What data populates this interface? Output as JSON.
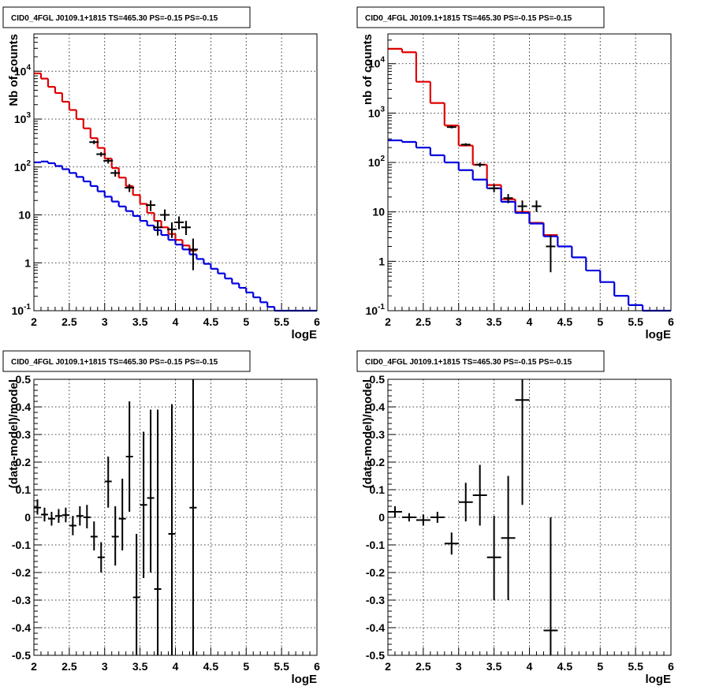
{
  "chart_data": [
    {
      "type": "step",
      "title": "CID0_4FGL J0109.1+1815 TS=465.30 PS=-0.15 PS=-0.15",
      "xlabel": "logE",
      "ylabel": "Nb of counts",
      "xlim": [
        2,
        6
      ],
      "ylim": [
        0.1,
        60000
      ],
      "yscale": "log",
      "grid": true,
      "x_ticks": [
        "2",
        "2.5",
        "3",
        "3.5",
        "4",
        "4.5",
        "5",
        "5.5",
        "6"
      ],
      "y_ticks": [
        "10^-1",
        "1",
        "10",
        "10^2",
        "10^3",
        "10^4"
      ],
      "series": [
        {
          "color": "#e00000",
          "kind": "step",
          "bin_width": 0.1,
          "x": [
            2.0,
            2.1,
            2.2,
            2.3,
            2.4,
            2.5,
            2.6,
            2.7,
            2.8,
            2.9,
            3.0,
            3.1,
            3.2,
            3.3,
            3.4,
            3.5,
            3.6,
            3.7,
            3.8,
            3.9,
            4.0,
            4.1,
            4.2
          ],
          "values": [
            9000,
            7000,
            4700,
            3500,
            2300,
            1550,
            1000,
            640,
            400,
            250,
            150,
            95,
            60,
            40,
            26,
            17,
            11,
            7.5,
            5.5,
            4,
            3,
            2.3,
            1.8
          ]
        },
        {
          "color": "#0000e0",
          "kind": "step",
          "bin_width": 0.1,
          "x": [
            2.0,
            2.1,
            2.2,
            2.3,
            2.4,
            2.5,
            2.6,
            2.7,
            2.8,
            2.9,
            3.0,
            3.1,
            3.2,
            3.3,
            3.4,
            3.5,
            3.6,
            3.7,
            3.8,
            3.9,
            4.0,
            4.1,
            4.2,
            4.3,
            4.4,
            4.5,
            4.6,
            4.7,
            4.8,
            4.9,
            5.0,
            5.1,
            5.2,
            5.3,
            5.4,
            5.5,
            5.6,
            5.7,
            5.8,
            5.9
          ],
          "values": [
            125,
            130,
            120,
            105,
            90,
            75,
            62,
            50,
            40,
            31,
            24,
            19,
            15,
            12,
            9.5,
            7.5,
            6,
            4.8,
            3.8,
            3,
            2.4,
            1.9,
            1.5,
            1.2,
            0.95,
            0.75,
            0.6,
            0.47,
            0.37,
            0.3,
            0.24,
            0.19,
            0.15,
            0.12,
            0.1,
            0.1,
            0.1,
            0.1,
            0.1,
            0.1
          ]
        },
        {
          "color": "#000000",
          "kind": "points",
          "x": [
            2.85,
            2.95,
            3.05,
            3.15,
            3.35,
            3.65,
            3.75,
            3.85,
            3.95,
            4.05,
            4.15,
            4.25
          ],
          "values": [
            330,
            185,
            135,
            75,
            37,
            16,
            5.5,
            10,
            5,
            7,
            5.5,
            1.9
          ],
          "err_low": [
            300,
            165,
            118,
            63,
            30,
            12,
            3.7,
            7.5,
            3.3,
            5,
            3.8,
            0.7
          ],
          "err_high": [
            360,
            205,
            152,
            87,
            44,
            20,
            7.5,
            13,
            7,
            9.3,
            7.5,
            3.2
          ]
        }
      ]
    },
    {
      "type": "step",
      "title": "CID0_4FGL J0109.1+1815 TS=465.30 PS=-0.15 PS=-0.15",
      "xlabel": "logE",
      "ylabel": "nb of counts",
      "xlim": [
        2,
        6
      ],
      "ylim": [
        0.1,
        40000
      ],
      "yscale": "log",
      "grid": true,
      "x_ticks": [
        "2",
        "2.5",
        "3",
        "3.5",
        "4",
        "4.5",
        "5",
        "5.5",
        "6"
      ],
      "y_ticks": [
        "10^-1",
        "1",
        "10",
        "10^2",
        "10^3",
        "10^4"
      ],
      "series": [
        {
          "color": "#e00000",
          "kind": "step",
          "bin_width": 0.2,
          "x": [
            2.0,
            2.2,
            2.4,
            2.6,
            2.8,
            3.0,
            3.2,
            3.4,
            3.6,
            3.8,
            4.0,
            4.2
          ],
          "values": [
            20000,
            17000,
            4300,
            1600,
            560,
            220,
            90,
            35,
            18,
            10,
            6,
            3.4
          ]
        },
        {
          "color": "#0000e0",
          "kind": "step",
          "bin_width": 0.2,
          "x": [
            2.0,
            2.2,
            2.4,
            2.6,
            2.8,
            3.0,
            3.2,
            3.4,
            3.6,
            3.8,
            4.0,
            4.2,
            4.4,
            4.6,
            4.8,
            5.0,
            5.2,
            5.4,
            5.6,
            5.8
          ],
          "values": [
            280,
            260,
            200,
            140,
            100,
            70,
            45,
            30,
            16,
            9.5,
            5.8,
            3.2,
            2,
            1.2,
            0.65,
            0.38,
            0.2,
            0.13,
            0.1,
            0.1
          ]
        },
        {
          "color": "#000000",
          "kind": "points",
          "x": [
            2.9,
            3.1,
            3.3,
            3.5,
            3.7,
            3.9,
            4.1,
            4.3
          ],
          "values": [
            520,
            230,
            90,
            30,
            19,
            13,
            13,
            2
          ],
          "err_low": [
            490,
            215,
            81,
            25,
            15,
            10,
            10,
            0.6
          ],
          "err_high": [
            550,
            245,
            99,
            36,
            23,
            17,
            17,
            3.4
          ]
        }
      ]
    },
    {
      "type": "scatter",
      "title": "CID0_4FGL J0109.1+1815 TS=465.30 PS=-0.15 PS=-0.15",
      "xlabel": "logE",
      "ylabel": "(data-model)/model",
      "xlim": [
        2,
        6
      ],
      "ylim": [
        -0.5,
        0.5
      ],
      "grid": true,
      "x_ticks": [
        "2",
        "2.5",
        "3",
        "3.5",
        "4",
        "4.5",
        "5",
        "5.5",
        "6"
      ],
      "y_ticks": [
        "-0.5",
        "-0.4",
        "-0.3",
        "-0.2",
        "-0.1",
        "0",
        "0.1",
        "0.2",
        "0.3",
        "0.4",
        "0.5"
      ],
      "x_half_width": 0.05,
      "series": [
        {
          "color": "#000000",
          "x": [
            2.05,
            2.15,
            2.25,
            2.35,
            2.45,
            2.55,
            2.65,
            2.75,
            2.85,
            2.95,
            3.05,
            3.15,
            3.25,
            3.35,
            3.45,
            3.55,
            3.65,
            3.75,
            3.95,
            4.25
          ],
          "values": [
            0.035,
            0.01,
            -0.005,
            0.005,
            0.008,
            -0.03,
            0.005,
            0.0,
            -0.07,
            -0.145,
            0.13,
            -0.07,
            -0.005,
            0.22,
            -0.29,
            0.045,
            0.07,
            -0.26,
            -0.06,
            0.035
          ],
          "err_low": [
            0.01,
            -0.015,
            -0.03,
            -0.02,
            -0.018,
            -0.065,
            -0.03,
            -0.04,
            -0.12,
            -0.2,
            0.035,
            -0.175,
            -0.12,
            0.02,
            -0.5,
            -0.22,
            -0.2,
            -0.5,
            -0.5,
            -0.5
          ],
          "err_high": [
            0.065,
            0.035,
            0.02,
            0.03,
            0.035,
            0.005,
            0.04,
            0.045,
            -0.015,
            -0.09,
            0.22,
            0.04,
            0.14,
            0.42,
            -0.06,
            0.31,
            0.39,
            0.39,
            0.41,
            0.5
          ]
        }
      ]
    },
    {
      "type": "scatter",
      "title": "CID0_4FGL J0109.1+1815 TS=465.30 PS=-0.15 PS=-0.15",
      "xlabel": "logE",
      "ylabel": "(data-model)/model",
      "xlim": [
        2,
        6
      ],
      "ylim": [
        -0.5,
        0.5
      ],
      "grid": true,
      "x_ticks": [
        "2",
        "2.5",
        "3",
        "3.5",
        "4",
        "4.5",
        "5",
        "5.5",
        "6"
      ],
      "y_ticks": [
        "-0.5",
        "-0.4",
        "-0.3",
        "-0.2",
        "-0.1",
        "0",
        "0.1",
        "0.2",
        "0.3",
        "0.4",
        "0.5"
      ],
      "x_half_width": 0.1,
      "series": [
        {
          "color": "#000000",
          "x": [
            2.1,
            2.3,
            2.5,
            2.7,
            2.9,
            3.1,
            3.3,
            3.5,
            3.7,
            3.9,
            4.3
          ],
          "values": [
            0.02,
            0.0,
            -0.01,
            0.0,
            -0.095,
            0.055,
            0.08,
            -0.145,
            -0.075,
            0.425,
            -0.41
          ],
          "err_low": [
            0.0,
            -0.015,
            -0.03,
            -0.02,
            -0.135,
            -0.015,
            -0.03,
            -0.3,
            -0.3,
            0.045,
            -0.5
          ],
          "err_high": [
            0.04,
            0.015,
            0.01,
            0.02,
            -0.055,
            0.125,
            0.19,
            0.005,
            0.15,
            0.5,
            0.0
          ]
        }
      ]
    }
  ]
}
